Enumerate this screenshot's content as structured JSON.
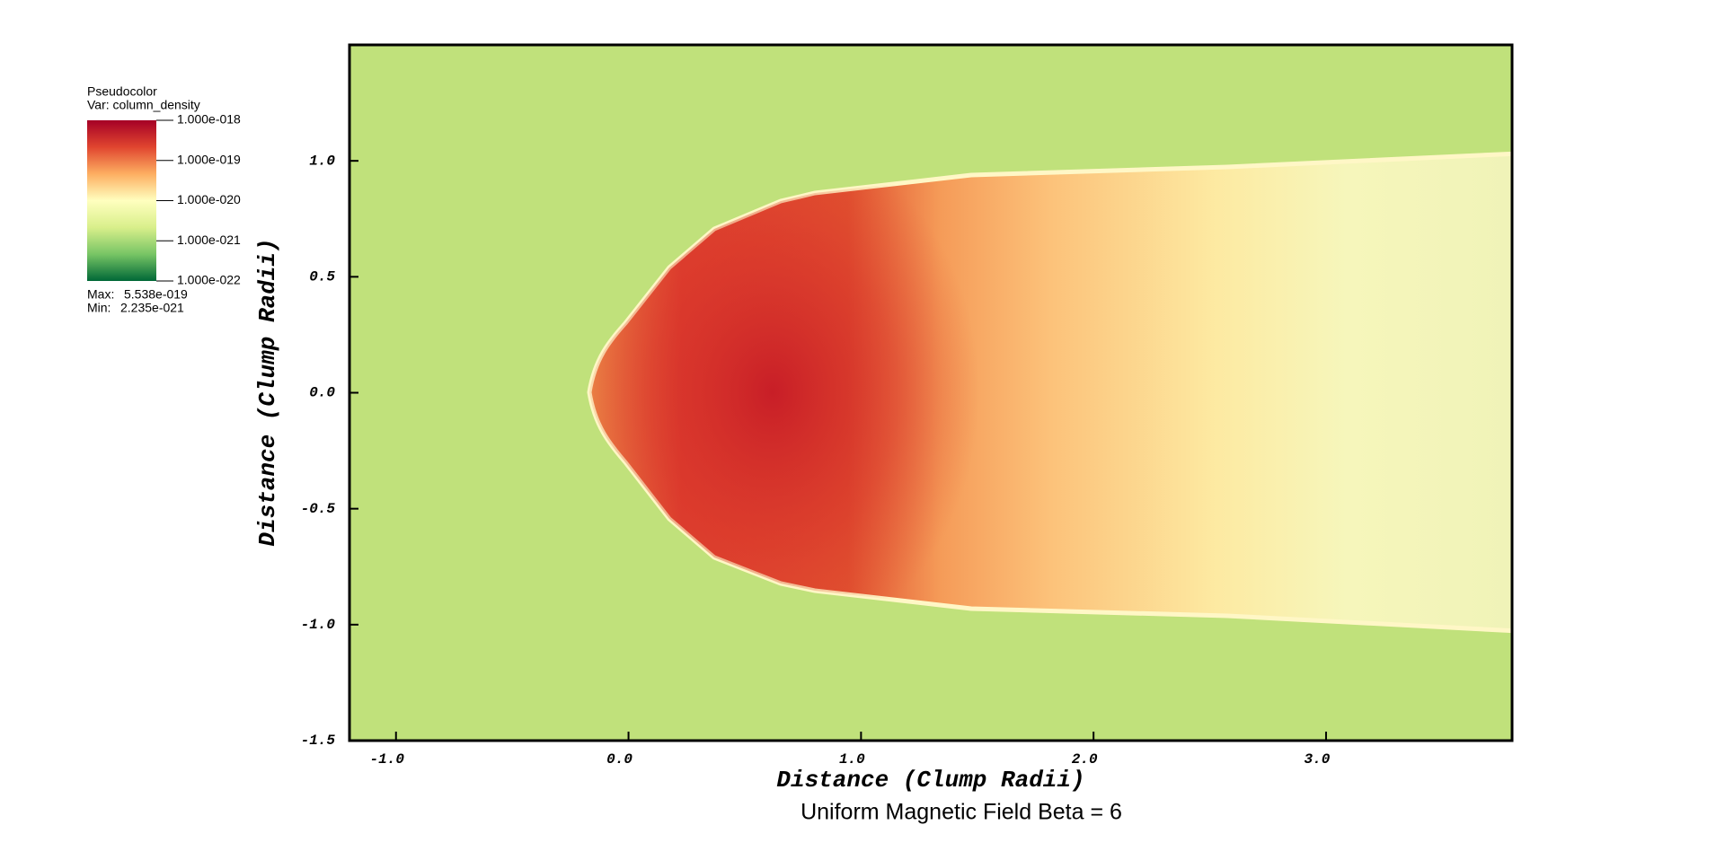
{
  "chart_data": {
    "type": "pseudocolor",
    "legend": {
      "title": "Pseudocolor",
      "var": "Var: column_density",
      "log": true,
      "colors": [
        "#006837",
        "#78c565",
        "#d9ef8b",
        "#ffffbf",
        "#fdae61",
        "#e0452f",
        "#a50026"
      ],
      "ticks": [
        {
          "value": 1e-18,
          "label": "1.000e-018"
        },
        {
          "value": 1e-19,
          "label": "1.000e-019"
        },
        {
          "value": 1e-20,
          "label": "1.000e-020"
        },
        {
          "value": 1e-21,
          "label": "1.000e-021"
        },
        {
          "value": 1e-22,
          "label": "1.000e-022"
        }
      ],
      "max_label": "Max:",
      "max": {
        "value": 5.538e-19,
        "label": "5.538e-019"
      },
      "min_label": "Min:",
      "min": {
        "value": 2.235e-21,
        "label": "2.235e-021"
      }
    },
    "xlabel": "Distance (Clump Radii)",
    "ylabel": "Distance (Clump Radii)",
    "caption": "Uniform Magnetic Field Beta = 6",
    "xlim": [
      -1.2,
      3.8
    ],
    "ylim": [
      -1.5,
      1.5
    ],
    "xticks": [
      {
        "value": -1,
        "label": "-1.0"
      },
      {
        "value": 0,
        "label": "0.0"
      },
      {
        "value": 1,
        "label": "1.0"
      },
      {
        "value": 2,
        "label": "2.0"
      },
      {
        "value": 3,
        "label": "3.0"
      }
    ],
    "yticks": [
      {
        "value": 1,
        "label": "1.0"
      },
      {
        "value": 0.5,
        "label": "0.5"
      },
      {
        "value": 0,
        "label": "0.0"
      },
      {
        "value": -0.5,
        "label": "-0.5"
      },
      {
        "value": -1,
        "label": "-1.0"
      },
      {
        "value": -1.5,
        "label": "-1.5"
      }
    ]
  }
}
